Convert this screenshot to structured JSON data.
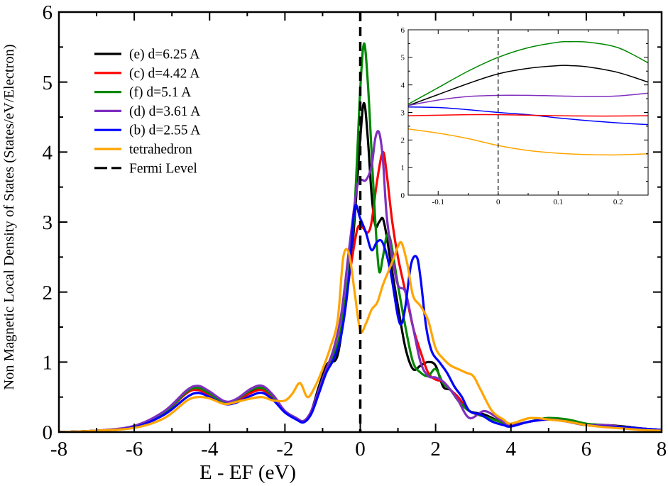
{
  "chart_data": [
    {
      "type": "line",
      "title": "",
      "xlabel": "E - EF (eV)",
      "ylabel": "Non Magnetic Local Density of States (States/eV/Electron)",
      "xlim": [
        -8,
        8
      ],
      "ylim": [
        0,
        6
      ],
      "xticks": [
        -8,
        -6,
        -4,
        -2,
        0,
        2,
        4,
        6,
        8
      ],
      "yticks": [
        0,
        1,
        2,
        3,
        4,
        5,
        6
      ],
      "grid": false,
      "legend_position": "top-left",
      "vline": {
        "name": "Fermi Level",
        "x": 0,
        "color": "#000000",
        "style": "dashed"
      },
      "series": [
        {
          "name": "(e) d=6.25 A",
          "color": "#000000",
          "x": [
            -8,
            -7,
            -6,
            -5.2,
            -4.6,
            -4.3,
            -4.0,
            -3.6,
            -3.3,
            -2.9,
            -2.6,
            -2.3,
            -2.0,
            -1.7,
            -1.5,
            -1.3,
            -1.1,
            -0.9,
            -0.8,
            -0.6,
            -0.4,
            -0.2,
            0.0,
            0.1,
            0.2,
            0.3,
            0.4,
            0.5,
            0.6,
            0.7,
            0.8,
            1.0,
            1.2,
            1.4,
            1.6,
            1.8,
            2.0,
            2.2,
            2.4,
            2.6,
            2.9,
            3.3,
            3.7,
            4.0,
            4.5,
            5.0,
            5.5,
            6.0,
            6.5,
            7.0,
            7.5,
            8.0
          ],
          "values": [
            0.0,
            0.02,
            0.08,
            0.28,
            0.58,
            0.62,
            0.55,
            0.42,
            0.45,
            0.58,
            0.62,
            0.5,
            0.3,
            0.2,
            0.15,
            0.3,
            0.65,
            0.95,
            1.0,
            1.1,
            1.8,
            2.7,
            4.2,
            4.7,
            4.2,
            3.4,
            2.95,
            3.0,
            3.05,
            2.8,
            2.45,
            1.8,
            1.2,
            0.9,
            0.95,
            1.0,
            0.95,
            0.65,
            0.6,
            0.45,
            0.3,
            0.25,
            0.15,
            0.1,
            0.15,
            0.2,
            0.15,
            0.1,
            0.1,
            0.08,
            0.05,
            0.03
          ]
        },
        {
          "name": "(c) d=4.42 A",
          "color": "#ff0000",
          "x": [
            -8,
            -7,
            -6,
            -5.2,
            -4.6,
            -4.3,
            -4.0,
            -3.6,
            -3.3,
            -2.9,
            -2.6,
            -2.3,
            -2.0,
            -1.7,
            -1.5,
            -1.3,
            -1.1,
            -0.9,
            -0.7,
            -0.5,
            -0.3,
            -0.1,
            0.0,
            0.1,
            0.2,
            0.3,
            0.45,
            0.6,
            0.7,
            0.85,
            1.0,
            1.2,
            1.4,
            1.6,
            1.8,
            2.0,
            2.2,
            2.4,
            2.6,
            2.9,
            3.3,
            3.7,
            4.0,
            4.5,
            5.0,
            5.5,
            6.0,
            6.5,
            7.0,
            7.5,
            8.0
          ],
          "values": [
            0.0,
            0.02,
            0.08,
            0.28,
            0.56,
            0.6,
            0.53,
            0.42,
            0.44,
            0.56,
            0.6,
            0.48,
            0.3,
            0.2,
            0.16,
            0.3,
            0.6,
            0.9,
            1.1,
            1.5,
            2.2,
            2.85,
            2.95,
            2.9,
            2.85,
            3.0,
            3.6,
            4.0,
            3.7,
            3.0,
            2.5,
            2.0,
            1.5,
            1.15,
            0.85,
            0.75,
            0.72,
            0.6,
            0.5,
            0.3,
            0.22,
            0.15,
            0.1,
            0.15,
            0.18,
            0.15,
            0.1,
            0.1,
            0.07,
            0.05,
            0.03
          ]
        },
        {
          "name": "(f) d=5.1 A",
          "color": "#008800",
          "x": [
            -8,
            -7,
            -6,
            -5.2,
            -4.6,
            -4.3,
            -4.0,
            -3.6,
            -3.3,
            -2.9,
            -2.6,
            -2.3,
            -2.0,
            -1.7,
            -1.5,
            -1.3,
            -1.1,
            -0.9,
            -0.7,
            -0.5,
            -0.3,
            -0.15,
            0.0,
            0.1,
            0.2,
            0.3,
            0.4,
            0.5,
            0.6,
            0.7,
            0.8,
            1.0,
            1.2,
            1.4,
            1.6,
            1.8,
            2.0,
            2.2,
            2.4,
            2.6,
            2.9,
            3.3,
            3.7,
            4.0,
            4.5,
            5.0,
            5.5,
            6.0,
            6.5,
            7.0,
            7.5,
            8.0
          ],
          "values": [
            0.0,
            0.02,
            0.08,
            0.28,
            0.58,
            0.63,
            0.55,
            0.42,
            0.46,
            0.6,
            0.63,
            0.5,
            0.3,
            0.2,
            0.15,
            0.28,
            0.6,
            0.9,
            1.1,
            1.5,
            2.3,
            3.2,
            4.9,
            5.55,
            5.0,
            4.0,
            3.0,
            2.3,
            2.5,
            2.8,
            2.75,
            2.1,
            1.5,
            1.0,
            0.85,
            0.8,
            0.9,
            0.7,
            0.6,
            0.45,
            0.3,
            0.22,
            0.15,
            0.1,
            0.15,
            0.2,
            0.18,
            0.12,
            0.1,
            0.07,
            0.05,
            0.03
          ]
        },
        {
          "name": "(d) d=3.61 A",
          "color": "#7f2fbf",
          "x": [
            -8,
            -7,
            -6,
            -5.2,
            -4.6,
            -4.3,
            -4.0,
            -3.6,
            -3.3,
            -2.9,
            -2.6,
            -2.3,
            -2.0,
            -1.7,
            -1.5,
            -1.3,
            -1.1,
            -0.9,
            -0.7,
            -0.5,
            -0.3,
            -0.1,
            0.0,
            0.15,
            0.3,
            0.4,
            0.5,
            0.6,
            0.7,
            0.85,
            1.0,
            1.2,
            1.4,
            1.6,
            1.8,
            2.0,
            2.2,
            2.4,
            2.6,
            2.9,
            3.3,
            3.7,
            4.0,
            4.5,
            5.0,
            5.5,
            6.0,
            6.5,
            7.0,
            7.5,
            8.0
          ],
          "values": [
            0.0,
            0.02,
            0.09,
            0.3,
            0.6,
            0.66,
            0.58,
            0.44,
            0.47,
            0.62,
            0.66,
            0.52,
            0.3,
            0.2,
            0.16,
            0.3,
            0.6,
            0.9,
            1.2,
            1.7,
            2.6,
            3.45,
            3.6,
            3.6,
            3.8,
            4.2,
            4.28,
            3.9,
            3.1,
            2.5,
            2.1,
            2.0,
            1.5,
            1.0,
            0.8,
            0.78,
            0.72,
            0.6,
            0.45,
            0.2,
            0.3,
            0.18,
            0.1,
            0.15,
            0.18,
            0.15,
            0.1,
            0.1,
            0.07,
            0.05,
            0.03
          ]
        },
        {
          "name": "(b) d=2.55 A",
          "color": "#0000ff",
          "x": [
            -8,
            -7,
            -6,
            -5.2,
            -4.6,
            -4.3,
            -4.0,
            -3.6,
            -3.3,
            -2.9,
            -2.6,
            -2.3,
            -2.0,
            -1.7,
            -1.5,
            -1.3,
            -1.1,
            -0.9,
            -0.7,
            -0.5,
            -0.3,
            -0.15,
            0.0,
            0.15,
            0.3,
            0.45,
            0.6,
            0.8,
            1.0,
            1.1,
            1.2,
            1.35,
            1.5,
            1.6,
            1.75,
            1.9,
            2.1,
            2.3,
            2.5,
            2.7,
            2.9,
            3.2,
            3.5,
            3.8,
            4.0,
            4.5,
            5.0,
            5.5,
            6.0,
            6.5,
            7.0,
            7.5,
            8.0
          ],
          "values": [
            0.0,
            0.02,
            0.07,
            0.25,
            0.5,
            0.56,
            0.5,
            0.4,
            0.42,
            0.52,
            0.56,
            0.45,
            0.28,
            0.18,
            0.14,
            0.26,
            0.55,
            0.85,
            1.05,
            1.4,
            2.2,
            3.2,
            3.05,
            2.85,
            2.6,
            2.72,
            2.7,
            2.3,
            1.65,
            1.55,
            1.8,
            2.4,
            2.5,
            2.2,
            1.5,
            1.15,
            1.0,
            0.85,
            0.65,
            0.5,
            0.3,
            0.25,
            0.15,
            0.1,
            0.08,
            0.15,
            0.18,
            0.15,
            0.1,
            0.08,
            0.07,
            0.05,
            0.03
          ]
        },
        {
          "name": "tetrahedron",
          "color": "#ffa500",
          "x": [
            -8,
            -7,
            -6,
            -5.2,
            -4.6,
            -4.3,
            -4.0,
            -3.6,
            -3.3,
            -2.9,
            -2.6,
            -2.3,
            -2.0,
            -1.8,
            -1.6,
            -1.4,
            -1.2,
            -1.0,
            -0.8,
            -0.6,
            -0.45,
            -0.3,
            -0.15,
            0.0,
            0.15,
            0.3,
            0.45,
            0.6,
            0.75,
            0.9,
            1.0,
            1.1,
            1.25,
            1.4,
            1.6,
            1.8,
            2.0,
            2.2,
            2.4,
            2.6,
            2.8,
            3.0,
            3.2,
            3.5,
            3.8,
            4.0,
            4.5,
            5.0,
            5.5,
            6.0,
            6.5,
            7.0,
            7.5,
            8.0
          ],
          "values": [
            0.0,
            0.02,
            0.06,
            0.2,
            0.45,
            0.5,
            0.48,
            0.4,
            0.43,
            0.48,
            0.5,
            0.45,
            0.45,
            0.55,
            0.7,
            0.5,
            0.65,
            0.9,
            1.2,
            1.6,
            2.5,
            2.55,
            2.0,
            1.45,
            1.55,
            1.75,
            1.85,
            2.1,
            2.3,
            2.5,
            2.65,
            2.7,
            2.4,
            1.95,
            1.8,
            1.6,
            1.2,
            1.05,
            0.95,
            0.9,
            0.85,
            0.8,
            0.6,
            0.3,
            0.18,
            0.12,
            0.2,
            0.18,
            0.15,
            0.1,
            0.07,
            0.05,
            0.03,
            0.02
          ]
        }
      ]
    },
    {
      "type": "line",
      "title": "",
      "xlabel": "",
      "ylabel": "",
      "xlim": [
        -0.15,
        0.25
      ],
      "ylim": [
        0,
        6
      ],
      "xticks": [
        -0.1,
        0,
        0.1,
        0.2
      ],
      "yticks": [
        0,
        1,
        2,
        3,
        4,
        5,
        6
      ],
      "grid": false,
      "vline": {
        "x": 0,
        "color": "#000000",
        "style": "dashed"
      },
      "series": [
        {
          "name": "(f) d=5.1 A",
          "color": "#008800",
          "x": [
            -0.15,
            -0.1,
            -0.05,
            0.0,
            0.05,
            0.1,
            0.12,
            0.15,
            0.2,
            0.25
          ],
          "values": [
            3.3,
            3.9,
            4.5,
            5.0,
            5.35,
            5.55,
            5.57,
            5.55,
            5.35,
            4.8
          ]
        },
        {
          "name": "(e) d=6.25 A",
          "color": "#000000",
          "x": [
            -0.15,
            -0.1,
            -0.05,
            0.0,
            0.05,
            0.1,
            0.12,
            0.15,
            0.2,
            0.25
          ],
          "values": [
            3.25,
            3.65,
            4.05,
            4.4,
            4.6,
            4.7,
            4.7,
            4.65,
            4.45,
            4.1
          ]
        },
        {
          "name": "(d) d=3.61 A",
          "color": "#7f2fbf",
          "x": [
            -0.15,
            -0.1,
            -0.05,
            0.0,
            0.05,
            0.1,
            0.15,
            0.2,
            0.25
          ],
          "values": [
            3.25,
            3.45,
            3.58,
            3.62,
            3.62,
            3.6,
            3.58,
            3.6,
            3.7
          ]
        },
        {
          "name": "(b) d=2.55 A",
          "color": "#0000ff",
          "x": [
            -0.15,
            -0.1,
            -0.05,
            0.0,
            0.05,
            0.1,
            0.15,
            0.2,
            0.25
          ],
          "values": [
            3.2,
            3.18,
            3.1,
            3.0,
            2.92,
            2.8,
            2.7,
            2.62,
            2.56
          ]
        },
        {
          "name": "(c) d=4.42 A",
          "color": "#ff0000",
          "x": [
            -0.15,
            -0.1,
            -0.05,
            0.0,
            0.05,
            0.1,
            0.15,
            0.2,
            0.25
          ],
          "values": [
            2.88,
            2.9,
            2.92,
            2.92,
            2.9,
            2.88,
            2.87,
            2.87,
            2.88
          ]
        },
        {
          "name": "tetrahedron",
          "color": "#ffa500",
          "x": [
            -0.15,
            -0.1,
            -0.05,
            0.0,
            0.05,
            0.1,
            0.15,
            0.18,
            0.2,
            0.25
          ],
          "values": [
            2.4,
            2.25,
            2.05,
            1.8,
            1.62,
            1.52,
            1.47,
            1.46,
            1.46,
            1.5
          ]
        }
      ]
    }
  ]
}
